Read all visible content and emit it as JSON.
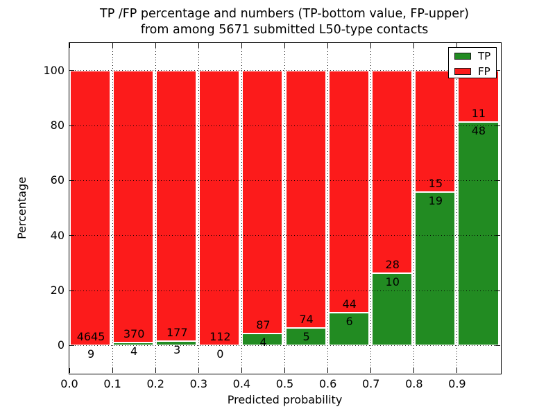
{
  "title_line1": "TP /FP percentage and numbers (TP-bottom value, FP-upper)",
  "title_line2": "from among 5671 submitted L50-type contacts",
  "total_contacts_in_title": "5671",
  "chart_data": {
    "type": "bar",
    "stacked": true,
    "normalized_to_100_percent": true,
    "title": "TP /FP percentage and numbers (TP-bottom value, FP-upper) from among 5671 submitted L50-type contacts",
    "xlabel": "Predicted probability",
    "ylabel": "Percentage",
    "bin_left_edges": [
      0.0,
      0.1,
      0.2,
      0.3,
      0.4,
      0.5,
      0.6,
      0.7,
      0.8,
      0.9
    ],
    "bin_width": 0.1,
    "series": [
      {
        "name": "TP",
        "color": "#228b22",
        "counts": [
          9,
          4,
          3,
          0,
          4,
          5,
          6,
          10,
          19,
          48
        ]
      },
      {
        "name": "FP",
        "color": "#fc1b1b",
        "counts": [
          4645,
          370,
          177,
          112,
          87,
          74,
          44,
          28,
          15,
          11
        ]
      }
    ],
    "tp_percent_of_bin": [
      0.19,
      1.07,
      1.67,
      0.0,
      4.4,
      6.33,
      12.0,
      26.32,
      55.88,
      81.36
    ],
    "xticks": [
      "0.0",
      "0.1",
      "0.2",
      "0.3",
      "0.4",
      "0.5",
      "0.6",
      "0.7",
      "0.8",
      "0.9"
    ],
    "yticks": [
      0,
      20,
      40,
      60,
      80,
      100
    ],
    "xlim": [
      0.0,
      1.0
    ],
    "ylim": [
      -10,
      110
    ],
    "grid": "dotted black, both axes",
    "legend_position": "upper right",
    "label_scheme": "TP count below segment boundary, FP count above segment boundary"
  },
  "legend": {
    "items": [
      {
        "label": "TP",
        "color": "#228b22"
      },
      {
        "label": "FP",
        "color": "#fc1b1b"
      }
    ]
  }
}
